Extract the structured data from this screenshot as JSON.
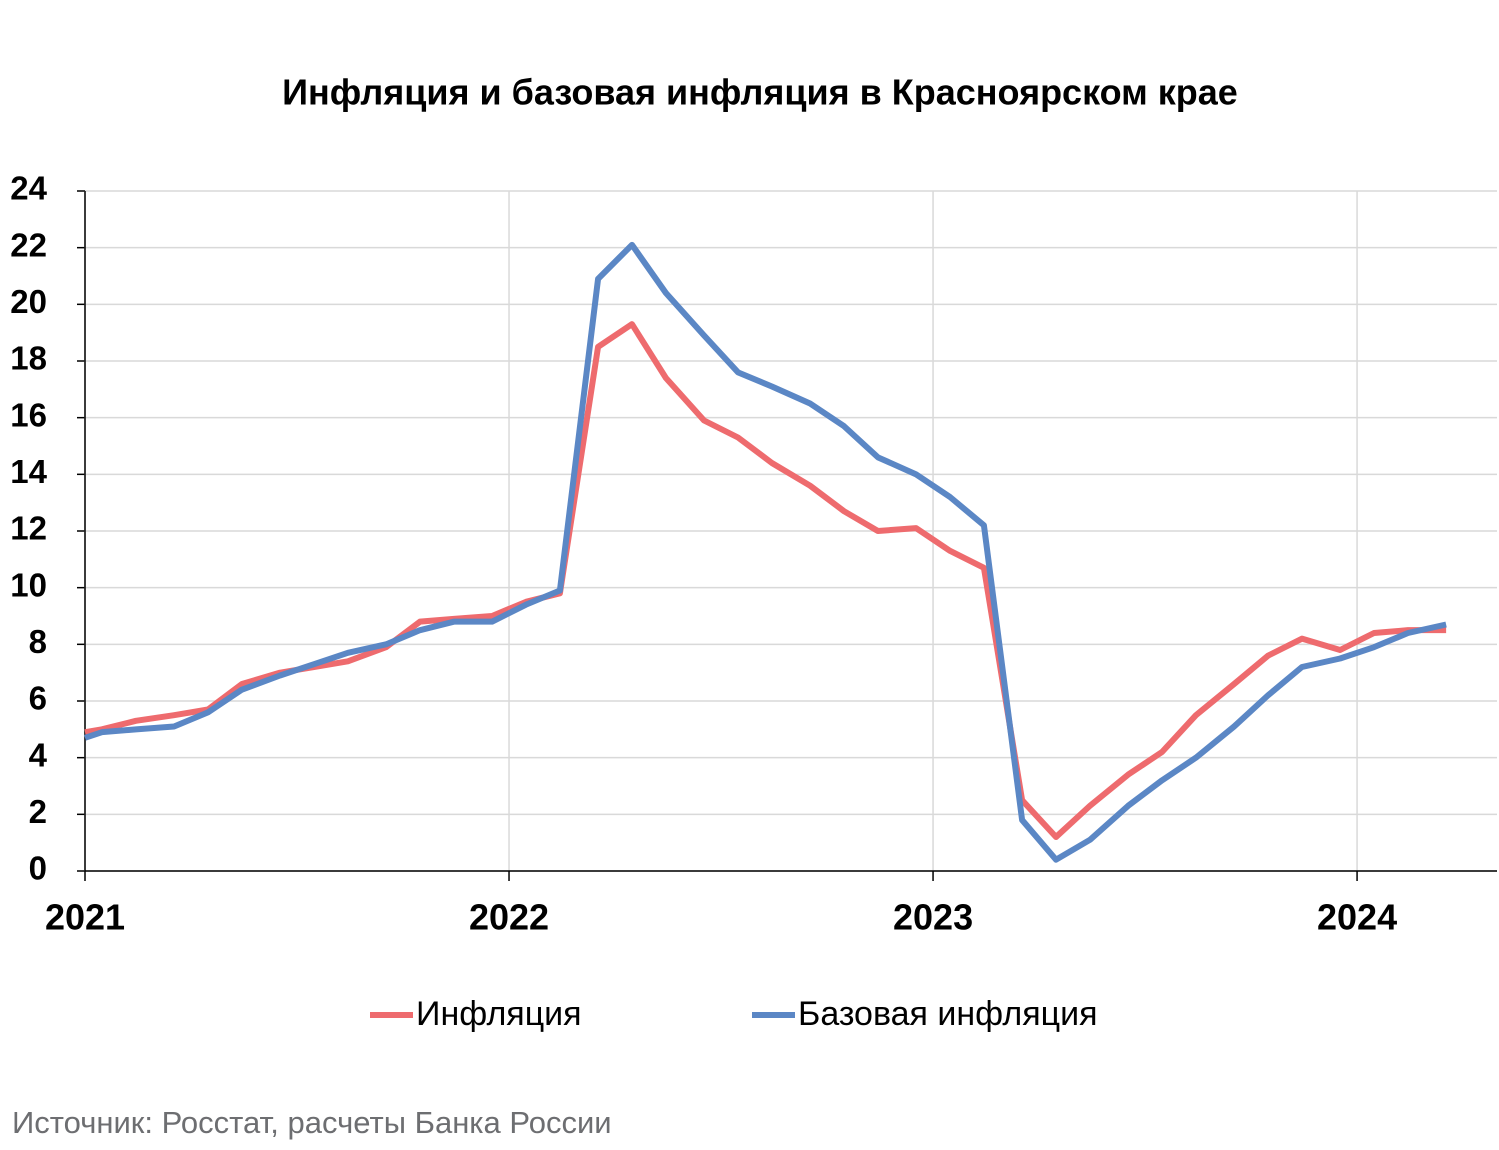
{
  "chart_data": {
    "type": "line",
    "title": "Инфляция и базовая инфляция в Красноярском крае",
    "x": [
      2021.0,
      2021.04,
      2021.12,
      2021.21,
      2021.29,
      2021.37,
      2021.46,
      2021.54,
      2021.62,
      2021.71,
      2021.79,
      2021.87,
      2021.96,
      2022.04,
      2022.12,
      2022.21,
      2022.29,
      2022.37,
      2022.46,
      2022.54,
      2022.62,
      2022.71,
      2022.79,
      2022.87,
      2022.96,
      2023.04,
      2023.12,
      2023.21,
      2023.29,
      2023.37,
      2023.46,
      2023.54,
      2023.62,
      2023.71,
      2023.79,
      2023.87,
      2023.96,
      2024.04,
      2024.12,
      2024.21
    ],
    "series": [
      {
        "name": "Инфляция",
        "color": "#ee6b6e",
        "values": [
          4.9,
          5.0,
          5.3,
          5.5,
          5.7,
          6.6,
          7.0,
          7.2,
          7.4,
          7.9,
          8.8,
          8.9,
          9.0,
          9.5,
          9.8,
          18.5,
          19.3,
          17.4,
          15.9,
          15.3,
          14.4,
          13.6,
          12.7,
          12.0,
          12.1,
          11.3,
          10.7,
          2.5,
          1.2,
          2.3,
          3.4,
          4.2,
          5.5,
          6.6,
          7.6,
          8.2,
          7.8,
          8.4,
          8.5,
          8.5
        ]
      },
      {
        "name": "Базовая инфляция",
        "color": "#5b87c5",
        "values": [
          4.7,
          4.9,
          5.0,
          5.1,
          5.6,
          6.4,
          6.9,
          7.3,
          7.7,
          8.0,
          8.5,
          8.8,
          8.8,
          9.4,
          9.9,
          20.9,
          22.1,
          20.4,
          18.9,
          17.6,
          17.1,
          16.5,
          15.7,
          14.6,
          14.0,
          13.2,
          12.2,
          1.8,
          0.4,
          1.1,
          2.3,
          3.2,
          4.0,
          5.1,
          6.2,
          7.2,
          7.5,
          7.9,
          8.4,
          8.7
        ]
      }
    ],
    "xlim": [
      2021,
      2024.33
    ],
    "xticks": [
      2021,
      2022,
      2023,
      2024
    ],
    "ylim": [
      0,
      24
    ],
    "yticks": [
      0,
      2,
      4,
      6,
      8,
      10,
      12,
      14,
      16,
      18,
      20,
      22,
      24
    ],
    "grid": true,
    "legend": "bottom",
    "source": "Источник: Росстат, расчеты Банка России"
  }
}
